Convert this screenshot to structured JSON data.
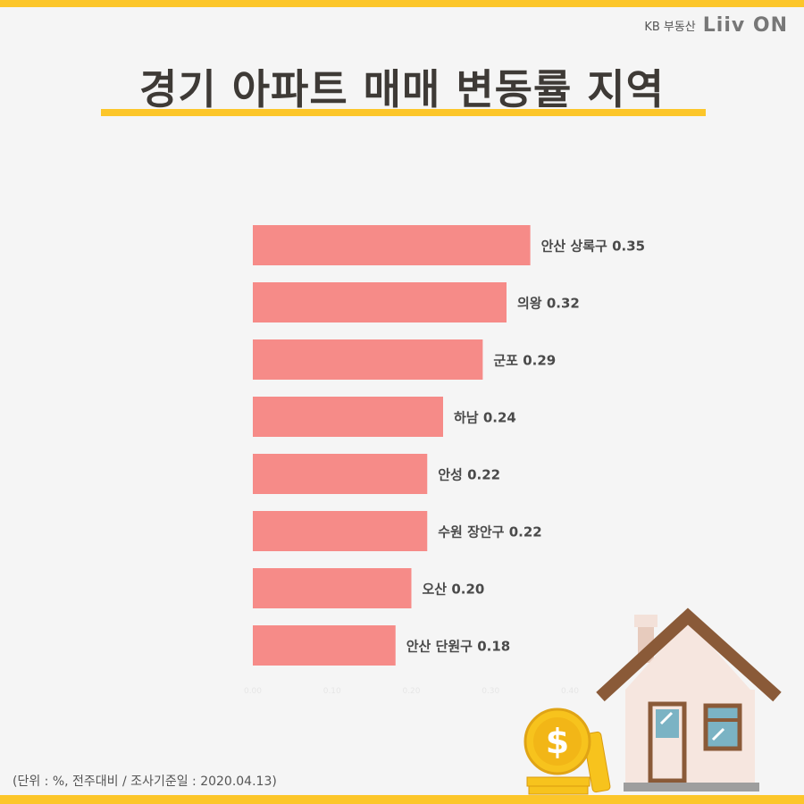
{
  "brand": {
    "kb_text": "KB 부동산",
    "liiv_text": "Liiv ON"
  },
  "title": "경기 아파트 매매 변동률 지역",
  "footnote": "(단위 : %, 전주대비 / 조사기준일 : 2020.04.13)",
  "colors": {
    "bar": "#f68b88",
    "accent": "#fcc62a",
    "title": "#3e3a36"
  },
  "chart_data": {
    "type": "bar",
    "orientation": "horizontal",
    "categories": [
      "안산 상록구",
      "의왕",
      "군포",
      "하남",
      "안성",
      "수원 장안구",
      "오산",
      "안산 단원구"
    ],
    "values": [
      0.35,
      0.32,
      0.29,
      0.24,
      0.22,
      0.22,
      0.2,
      0.18
    ],
    "value_labels": [
      "0.35",
      "0.32",
      "0.29",
      "0.24",
      "0.22",
      "0.22",
      "0.20",
      "0.18"
    ],
    "xlim": [
      0,
      0.4
    ],
    "x_ticks": [
      "0.00",
      "0.10",
      "0.20",
      "0.30",
      "0.40"
    ],
    "grid": false,
    "legend": "none"
  }
}
